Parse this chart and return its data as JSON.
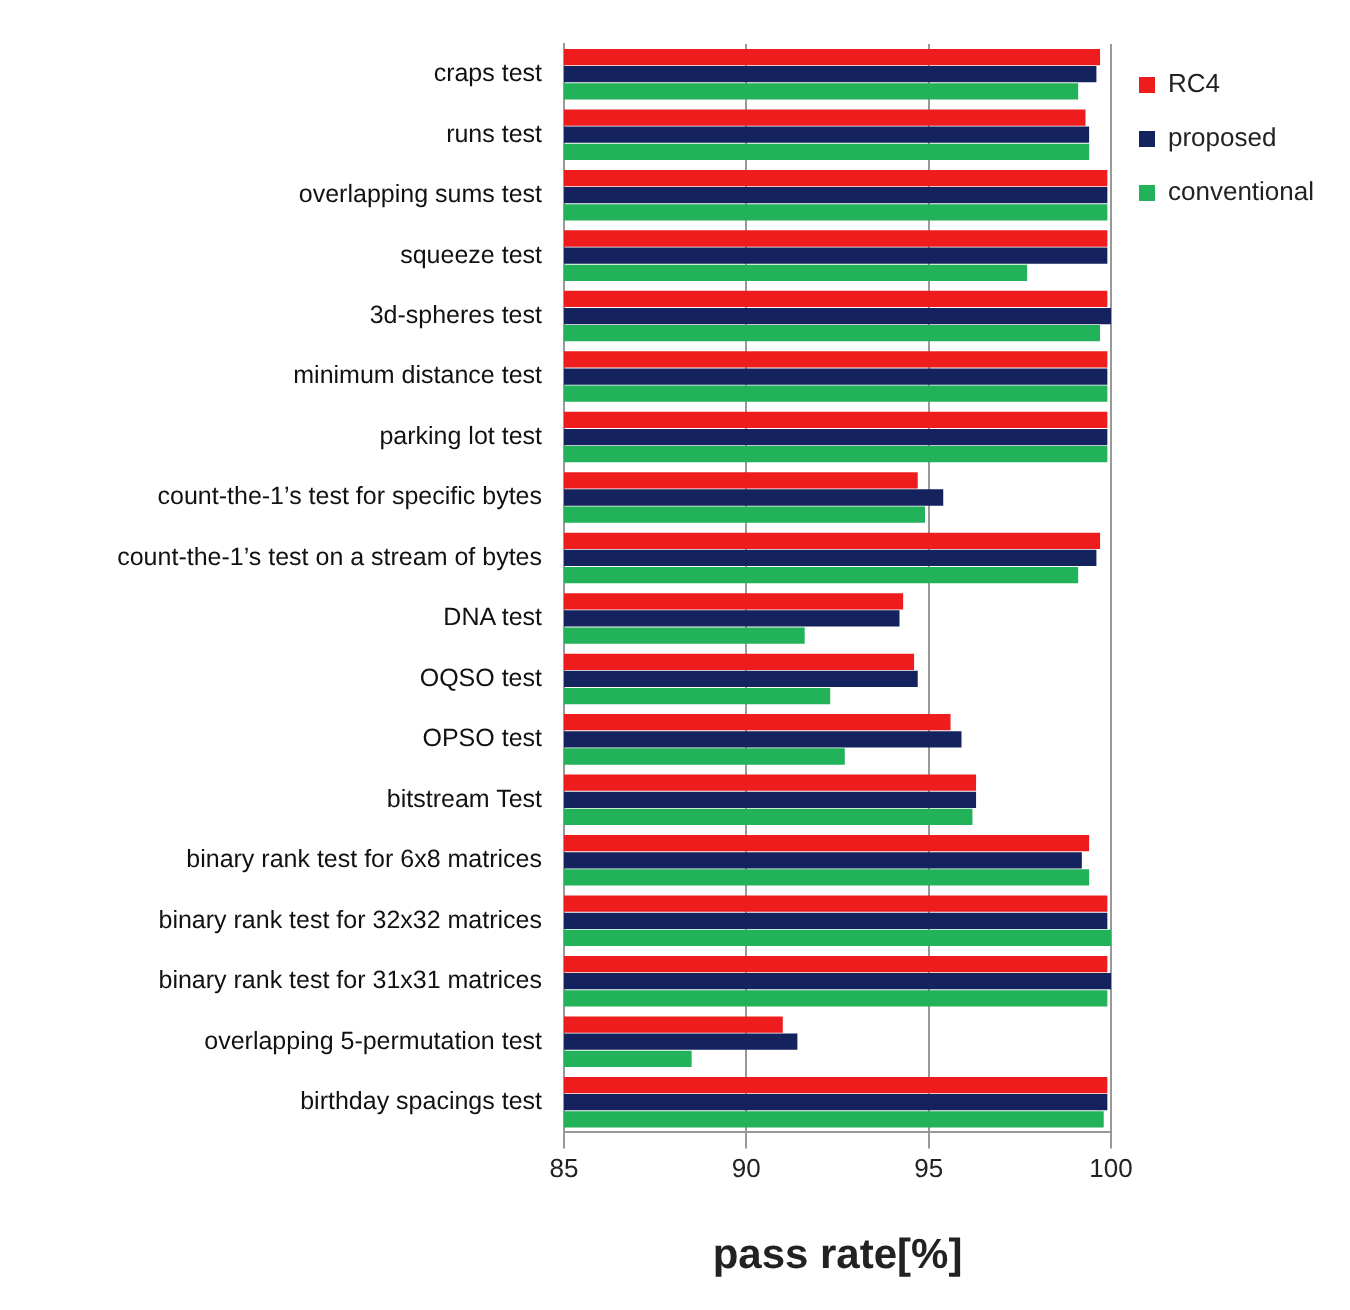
{
  "chart_data": {
    "type": "bar",
    "orientation": "horizontal",
    "xlabel": "pass rate[%]",
    "categories": [
      "craps test",
      "runs test",
      "overlapping sums test",
      "squeeze test",
      "3d-spheres test",
      "minimum distance test",
      "parking lot test",
      "count-the-1’s test for specific bytes",
      "count-the-1’s test on a stream of bytes",
      "DNA test",
      "OQSO test",
      "OPSO test",
      "bitstream Test",
      "binary rank test for 6x8 matrices",
      "binary rank test for 32x32 matrices",
      "binary rank test for 31x31 matrices",
      "overlapping 5-permutation test",
      "birthday spacings test"
    ],
    "series": [
      {
        "name": "RC4",
        "color": "#ee1c1c",
        "values": [
          99.7,
          99.3,
          99.9,
          99.9,
          99.9,
          99.9,
          99.9,
          94.7,
          99.7,
          94.3,
          94.6,
          95.6,
          96.3,
          99.4,
          99.9,
          99.9,
          91.0,
          99.9
        ]
      },
      {
        "name": "proposed",
        "color": "#14235e",
        "values": [
          99.6,
          99.4,
          99.9,
          99.9,
          100,
          99.9,
          99.9,
          95.4,
          99.6,
          94.2,
          94.7,
          95.9,
          96.3,
          99.2,
          99.9,
          100,
          91.4,
          99.9
        ]
      },
      {
        "name": "conventional",
        "color": "#22b25a",
        "values": [
          99.1,
          99.4,
          99.9,
          97.7,
          99.7,
          99.9,
          99.9,
          94.9,
          99.1,
          91.6,
          92.3,
          92.7,
          96.2,
          99.4,
          100,
          99.9,
          88.5,
          99.8
        ]
      }
    ],
    "xlim": [
      85,
      100
    ],
    "xticks": [
      85,
      90,
      95,
      100
    ],
    "grid": "x",
    "legend": "top right"
  }
}
